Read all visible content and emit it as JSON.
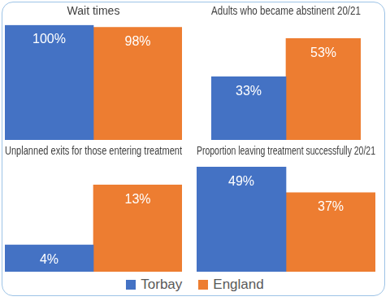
{
  "chart_data": [
    {
      "type": "bar",
      "title": "Wait times",
      "categories": [
        null
      ],
      "series": [
        {
          "name": "Torbay",
          "color": "#4472c4",
          "values": [
            100
          ],
          "value_labels": [
            "100%"
          ]
        },
        {
          "name": "England",
          "color": "#ed7d31",
          "values": [
            98
          ],
          "value_labels": [
            "98%"
          ]
        }
      ],
      "ylim": [
        0,
        100
      ],
      "grid": false,
      "tick_labels": false,
      "data_labels": true,
      "legend": "bottom"
    },
    {
      "type": "bar",
      "title": "Adults who became abstinent 20/21",
      "categories": [
        null
      ],
      "series": [
        {
          "name": "Torbay",
          "color": "#4472c4",
          "values": [
            33
          ],
          "value_labels": [
            "33%"
          ]
        },
        {
          "name": "England",
          "color": "#ed7d31",
          "values": [
            53
          ],
          "value_labels": [
            "53%"
          ]
        }
      ],
      "ylim": [
        0,
        60
      ],
      "grid": false,
      "tick_labels": false,
      "data_labels": true,
      "legend": "bottom"
    },
    {
      "type": "bar",
      "title": "Unplanned exits for those entering treatment",
      "categories": [
        null
      ],
      "series": [
        {
          "name": "Torbay",
          "color": "#4472c4",
          "values": [
            4
          ],
          "value_labels": [
            "4%"
          ]
        },
        {
          "name": "England",
          "color": "#ed7d31",
          "values": [
            13
          ],
          "value_labels": [
            "13%"
          ]
        }
      ],
      "ylim": [
        0,
        16
      ],
      "grid": false,
      "tick_labels": false,
      "data_labels": true,
      "legend": "bottom"
    },
    {
      "type": "bar",
      "title": "Proportion leaving treatment successfully 20/21",
      "categories": [
        null
      ],
      "series": [
        {
          "name": "Torbay",
          "color": "#4472c4",
          "values": [
            49
          ],
          "value_labels": [
            "49%"
          ]
        },
        {
          "name": "England",
          "color": "#ed7d31",
          "values": [
            37
          ],
          "value_labels": [
            "37%"
          ]
        }
      ],
      "ylim": [
        0,
        50
      ],
      "grid": false,
      "tick_labels": false,
      "data_labels": true,
      "legend": "bottom"
    }
  ]
}
